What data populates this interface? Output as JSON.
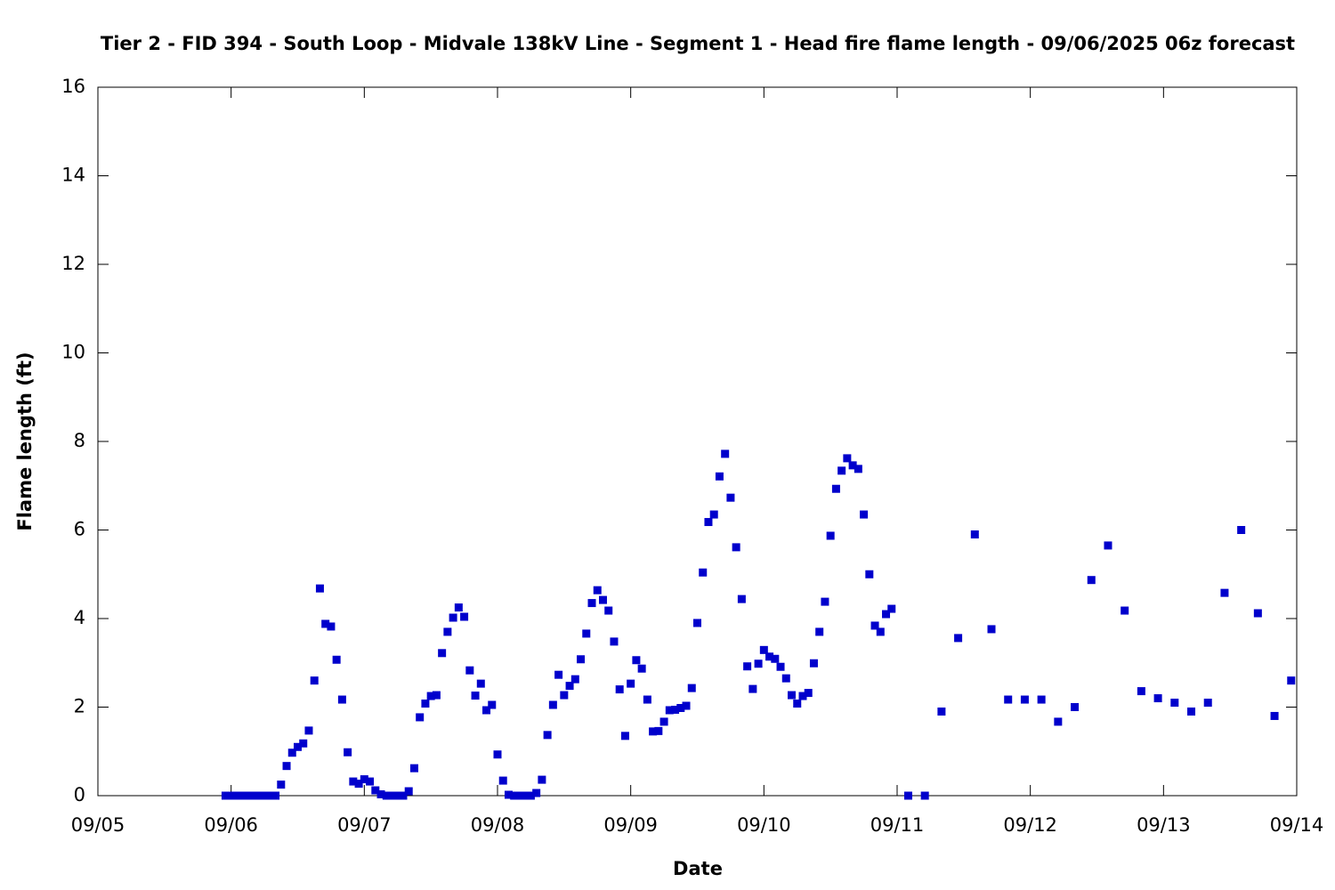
{
  "chart_data": {
    "type": "scatter",
    "title": "Tier 2 - FID 394 - South Loop - Midvale 138kV Line - Segment 1 - Head fire flame length - 09/06/2025 06z forecast",
    "xlabel": "Date",
    "ylabel": "Flame length (ft)",
    "color": "#0000cc",
    "xlim": [
      0,
      216
    ],
    "xticks": [
      {
        "value": 0,
        "label": "09/05"
      },
      {
        "value": 24,
        "label": "09/06"
      },
      {
        "value": 48,
        "label": "09/07"
      },
      {
        "value": 72,
        "label": "09/08"
      },
      {
        "value": 96,
        "label": "09/09"
      },
      {
        "value": 120,
        "label": "09/10"
      },
      {
        "value": 144,
        "label": "09/11"
      },
      {
        "value": 168,
        "label": "09/12"
      },
      {
        "value": 192,
        "label": "09/13"
      },
      {
        "value": 216,
        "label": "09/14"
      }
    ],
    "ylim": [
      0,
      16
    ],
    "yticks": [
      0,
      2,
      4,
      6,
      8,
      10,
      12,
      14,
      16
    ],
    "x": [
      23,
      24,
      25,
      26,
      27,
      28,
      29,
      30,
      31,
      32,
      33,
      34,
      35,
      36,
      37,
      38,
      39,
      40,
      41,
      42,
      43,
      44,
      45,
      46,
      47,
      48,
      49,
      50,
      51,
      52,
      53,
      54,
      55,
      56,
      57,
      58,
      59,
      60,
      61,
      62,
      63,
      64,
      65,
      66,
      67,
      68,
      69,
      70,
      71,
      72,
      73,
      74,
      75,
      76,
      77,
      78,
      79,
      80,
      81,
      82,
      83,
      84,
      85,
      86,
      87,
      88,
      89,
      90,
      91,
      92,
      93,
      94,
      95,
      96,
      97,
      98,
      99,
      100,
      101,
      102,
      103,
      104,
      105,
      106,
      107,
      108,
      109,
      110,
      111,
      112,
      113,
      114,
      115,
      116,
      117,
      118,
      119,
      120,
      121,
      122,
      123,
      124,
      125,
      126,
      127,
      128,
      129,
      130,
      131,
      132,
      133,
      134,
      135,
      136,
      137,
      138,
      139,
      140,
      141,
      142,
      143,
      146,
      149,
      152,
      155,
      158,
      161,
      164,
      167,
      170,
      173,
      176,
      179,
      182,
      185,
      188,
      191,
      194,
      197,
      200,
      203,
      206,
      209,
      212,
      215
    ],
    "values": [
      0,
      0,
      0,
      0,
      0,
      0,
      0,
      0,
      0,
      0,
      0.25,
      0.67,
      0.97,
      1.1,
      1.18,
      1.47,
      2.6,
      4.68,
      3.88,
      3.82,
      3.07,
      2.17,
      0.98,
      0.32,
      0.27,
      0.37,
      0.32,
      0.12,
      0.03,
      0,
      0,
      0,
      0,
      0.1,
      0.62,
      1.77,
      2.08,
      2.25,
      2.27,
      3.22,
      3.7,
      4.02,
      4.25,
      4.04,
      2.83,
      2.26,
      2.53,
      1.93,
      2.05,
      0.93,
      0.34,
      0.02,
      0,
      0,
      0,
      0,
      0.06,
      0.36,
      1.37,
      2.05,
      2.73,
      2.27,
      2.48,
      2.63,
      3.08,
      3.66,
      4.35,
      4.64,
      4.42,
      4.18,
      3.48,
      2.4,
      1.35,
      2.53,
      3.06,
      2.87,
      2.17,
      1.45,
      1.46,
      1.67,
      1.93,
      1.94,
      1.98,
      2.03,
      2.43,
      3.9,
      5.04,
      6.18,
      6.35,
      7.21,
      7.72,
      6.73,
      5.61,
      4.44,
      2.92,
      2.41,
      2.98,
      3.29,
      3.14,
      3.09,
      2.91,
      2.65,
      2.27,
      2.08,
      2.25,
      2.32,
      2.99,
      3.7,
      4.38,
      5.87,
      6.93,
      7.34,
      7.62,
      7.46,
      7.38,
      6.35,
      5.0,
      3.84,
      3.7,
      4.1,
      4.22,
      0,
      0,
      1.9,
      3.56,
      5.9,
      3.76,
      2.17,
      2.17,
      2.17,
      1.67,
      2.0,
      4.87,
      5.65,
      4.18,
      2.36,
      2.2,
      2.1,
      1.9,
      2.1,
      4.58,
      6.0,
      4.12,
      1.8,
      2.6
    ]
  }
}
